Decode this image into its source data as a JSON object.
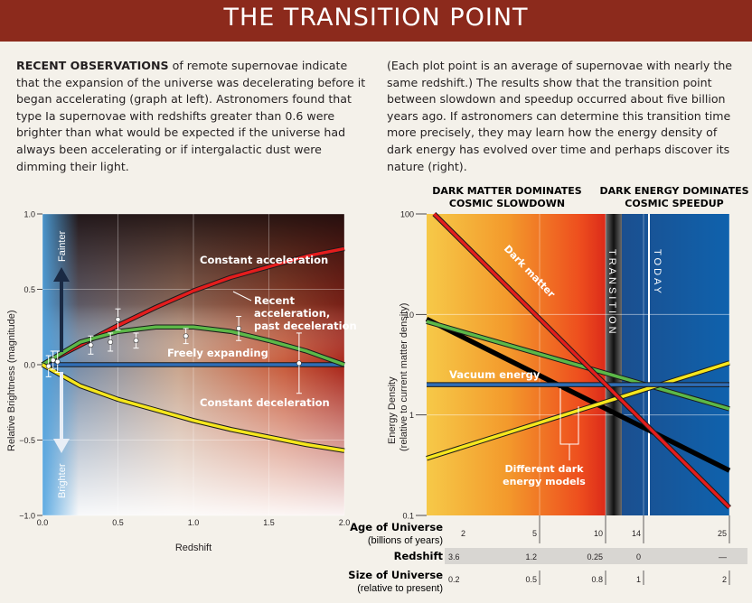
{
  "header": {
    "title": "THE TRANSITION POINT"
  },
  "intro": {
    "left_lead": "RECENT OBSERVATIONS",
    "left_text": "of remote supernovae indicate that the expansion of the universe was decelerating before it began accelerating (graph at left). Astronomers found that type Ia supernovae with redshifts greater than 0.6 were brighter than what would be expected if the universe had always been accelerating or if intergalactic dust were dimming their light.",
    "right_text": "(Each plot point is an average of supernovae with nearly the same redshift.) The results show that the transition point between slowdown and speedup occurred about five billion years ago. If astronomers can determine this transition time more precisely, they may learn how the energy density of dark energy has evolved over time and perhaps discover its nature (right)."
  },
  "left_chart": {
    "y_axis_label": "Relative Brightness (magnitude)",
    "x_axis_label": "Redshift",
    "fainter_label": "Fainter",
    "brighter_label": "Brighter",
    "x_ticks": [
      "0.0",
      "0.5",
      "1.0",
      "1.5",
      "2.0"
    ],
    "y_ticks": [
      "1.0",
      "0.5",
      "0.0",
      "−0.5",
      "−1.0"
    ],
    "curve_labels": {
      "constant_acceleration": "Constant acceleration",
      "recent_acceleration_1": "Recent",
      "recent_acceleration_2": "acceleration,",
      "recent_acceleration_3": "past deceleration",
      "freely_expanding": "Freely expanding",
      "constant_deceleration": "Constant deceleration"
    }
  },
  "right_chart": {
    "top_left_header_1": "DARK MATTER DOMINATES",
    "top_left_header_2": "COSMIC SLOWDOWN",
    "top_right_header_1": "DARK ENERGY DOMINATES",
    "top_right_header_2": "COSMIC SPEEDUP",
    "y_axis_label_1": "Energy Density",
    "y_axis_label_2": "(relative to current matter density)",
    "y_ticks": [
      "100",
      "10",
      "1",
      "0.1"
    ],
    "transition_label": "TRANSITION",
    "today_label": "TODAY",
    "dark_matter_label": "Dark matter",
    "vacuum_energy_label": "Vacuum energy",
    "models_label_1": "Different dark",
    "models_label_2": "energy models",
    "age_row_label_1": "Age of Universe",
    "age_row_label_2": "(billions of years)",
    "age_values": [
      "2",
      "5",
      "10",
      "14",
      "25"
    ],
    "redshift_row_label": "Redshift",
    "redshift_values": [
      "3.6",
      "1.2",
      "0.25",
      "0",
      "—"
    ],
    "size_row_label_1": "Size of Universe",
    "size_row_label_2": "(relative to present)",
    "size_values": [
      "0.2",
      "0.5",
      "0.8",
      "1",
      "2"
    ]
  },
  "chart_data": [
    {
      "type": "line",
      "xlabel": "Redshift",
      "ylabel": "Relative Brightness (magnitude)",
      "xlim": [
        0,
        2
      ],
      "ylim": [
        -1.0,
        1.0
      ],
      "series": [
        {
          "name": "Constant acceleration",
          "color": "#e31d1d",
          "x": [
            0,
            0.25,
            0.5,
            0.75,
            1.0,
            1.25,
            1.5,
            1.75,
            2.0
          ],
          "values": [
            0.0,
            0.13,
            0.26,
            0.38,
            0.49,
            0.58,
            0.65,
            0.72,
            0.77
          ]
        },
        {
          "name": "Recent acceleration, past deceleration",
          "color": "#5cb848",
          "x": [
            0,
            0.25,
            0.5,
            0.75,
            1.0,
            1.25,
            1.5,
            1.75,
            2.0
          ],
          "values": [
            0.0,
            0.15,
            0.22,
            0.25,
            0.25,
            0.22,
            0.16,
            0.09,
            0.0
          ]
        },
        {
          "name": "Freely expanding",
          "color": "#2f6db5",
          "x": [
            0,
            2.0
          ],
          "values": [
            0.0,
            0.0
          ]
        },
        {
          "name": "Constant deceleration",
          "color": "#f5e61d",
          "x": [
            0,
            0.25,
            0.5,
            0.75,
            1.0,
            1.25,
            1.5,
            1.75,
            2.0
          ],
          "values": [
            0.0,
            -0.14,
            -0.23,
            -0.3,
            -0.37,
            -0.43,
            -0.48,
            -0.53,
            -0.57
          ]
        }
      ],
      "points": [
        {
          "x": 0.04,
          "y": -0.01,
          "err": 0.07
        },
        {
          "x": 0.07,
          "y": 0.03,
          "err": 0.06
        },
        {
          "x": 0.1,
          "y": 0.02,
          "err": 0.07
        },
        {
          "x": 0.32,
          "y": 0.13,
          "err": 0.06
        },
        {
          "x": 0.45,
          "y": 0.15,
          "err": 0.06
        },
        {
          "x": 0.5,
          "y": 0.3,
          "err": 0.07
        },
        {
          "x": 0.62,
          "y": 0.16,
          "err": 0.05
        },
        {
          "x": 0.95,
          "y": 0.19,
          "err": 0.05
        },
        {
          "x": 1.3,
          "y": 0.24,
          "err": 0.08
        },
        {
          "x": 1.7,
          "y": 0.01,
          "err": 0.2
        }
      ]
    },
    {
      "type": "line",
      "xlabel": "Age of Universe (billions of years)",
      "ylabel": "Energy Density (relative to current matter density)",
      "ylim": [
        0.1,
        100
      ],
      "yscale": "log",
      "x_ticks": [
        2,
        5,
        10,
        14,
        25
      ],
      "series": [
        {
          "name": "Dark matter",
          "color": "#e31d1d",
          "x": [
            2.2,
            25
          ],
          "values": [
            100,
            0.12
          ]
        },
        {
          "name": "Vacuum energy",
          "color": "#2f6db5",
          "x": [
            1.8,
            25
          ],
          "values": [
            2.0,
            2.0
          ]
        },
        {
          "color": "#000000",
          "x": [
            1.8,
            25
          ],
          "values": [
            9.0,
            0.28
          ]
        },
        {
          "color": "#5cb848",
          "x": [
            1.8,
            25
          ],
          "values": [
            8.5,
            1.15
          ]
        },
        {
          "color": "#f5e61d",
          "x": [
            1.8,
            25
          ],
          "values": [
            0.37,
            3.3
          ]
        }
      ]
    }
  ]
}
